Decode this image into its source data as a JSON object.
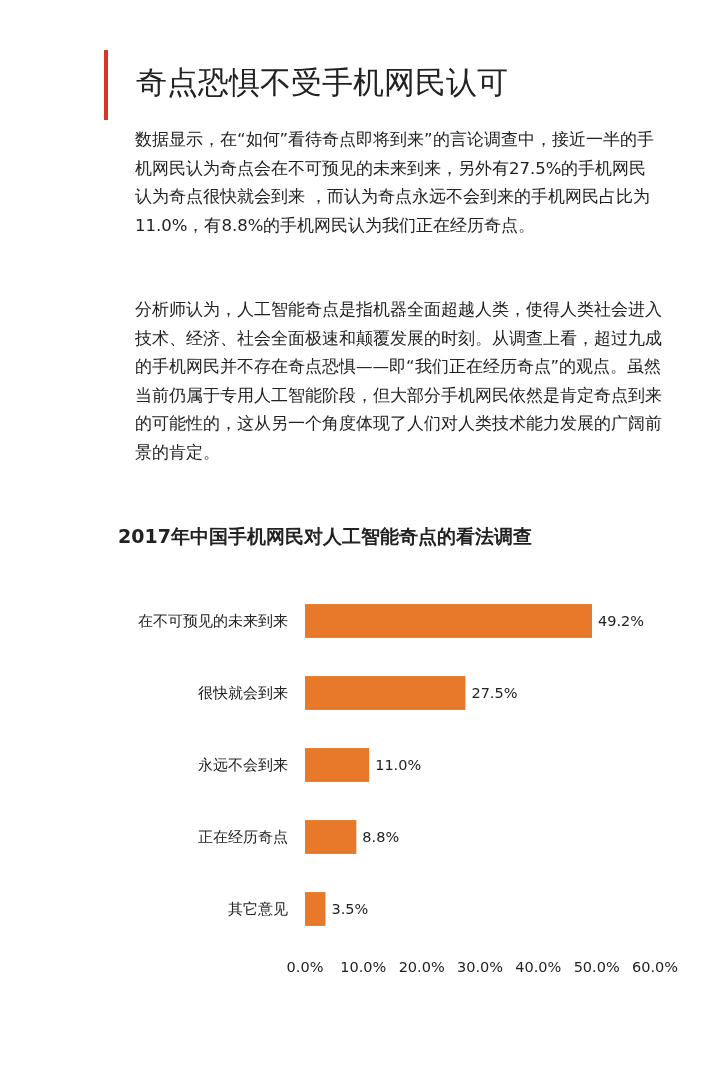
{
  "chart_data": {
    "type": "bar",
    "orientation": "horizontal",
    "title": "奇点恐惧不受手机网民认可",
    "subtitle": "2017年中国手机网民对人工智能奇点的看法调查",
    "annotations": [
      "数据显示，在“如何”看待奇点即将到来”的言论调查中，接近一半的手机网民认为奇点会在不可预见的未来到来，另外有27.5%的手机网民认为奇点很快就会到来 ，而认为奇点永远不会到来的手机网民占比为11.0%，有8.8%的手机网民认为我们正在经历奇点。",
      "分析师认为，人工智能奇点是指机器全面超越人类，使得人类社会进入技术、经济、社会全面极速和颠覆发展的时刻。从调查上看，超过九成的手机网民并不存在奇点恐惧——即“我们正在经历奇点”的观点。虽然当前仍属于专用人工智能阶段，但大部分手机网民依然是肯定奇点到来的可能性的，这从另一个角度体现了人们对人类技术能力发展的广阔前景的肯定。"
    ],
    "categories": [
      "在不可预见的未来到来",
      "很快就会到来",
      "永远不会到来",
      "正在经历奇点",
      "其它意见"
    ],
    "values": [
      49.2,
      27.5,
      11.0,
      8.8,
      3.5
    ],
    "value_labels": [
      "49.2%",
      "27.5%",
      "11.0%",
      "8.8%",
      "3.5%"
    ],
    "color": "#e8782a",
    "xlim": [
      0,
      60
    ],
    "xticks": [
      {
        "value": 0,
        "label": "0.0%"
      },
      {
        "value": 10,
        "label": "10.0%"
      },
      {
        "value": 20,
        "label": "20.0%"
      },
      {
        "value": 30,
        "label": "30.0%"
      },
      {
        "value": 40,
        "label": "40.0%"
      },
      {
        "value": 50,
        "label": "50.0%"
      },
      {
        "value": 60,
        "label": "60.0%"
      }
    ],
    "grid": false
  }
}
